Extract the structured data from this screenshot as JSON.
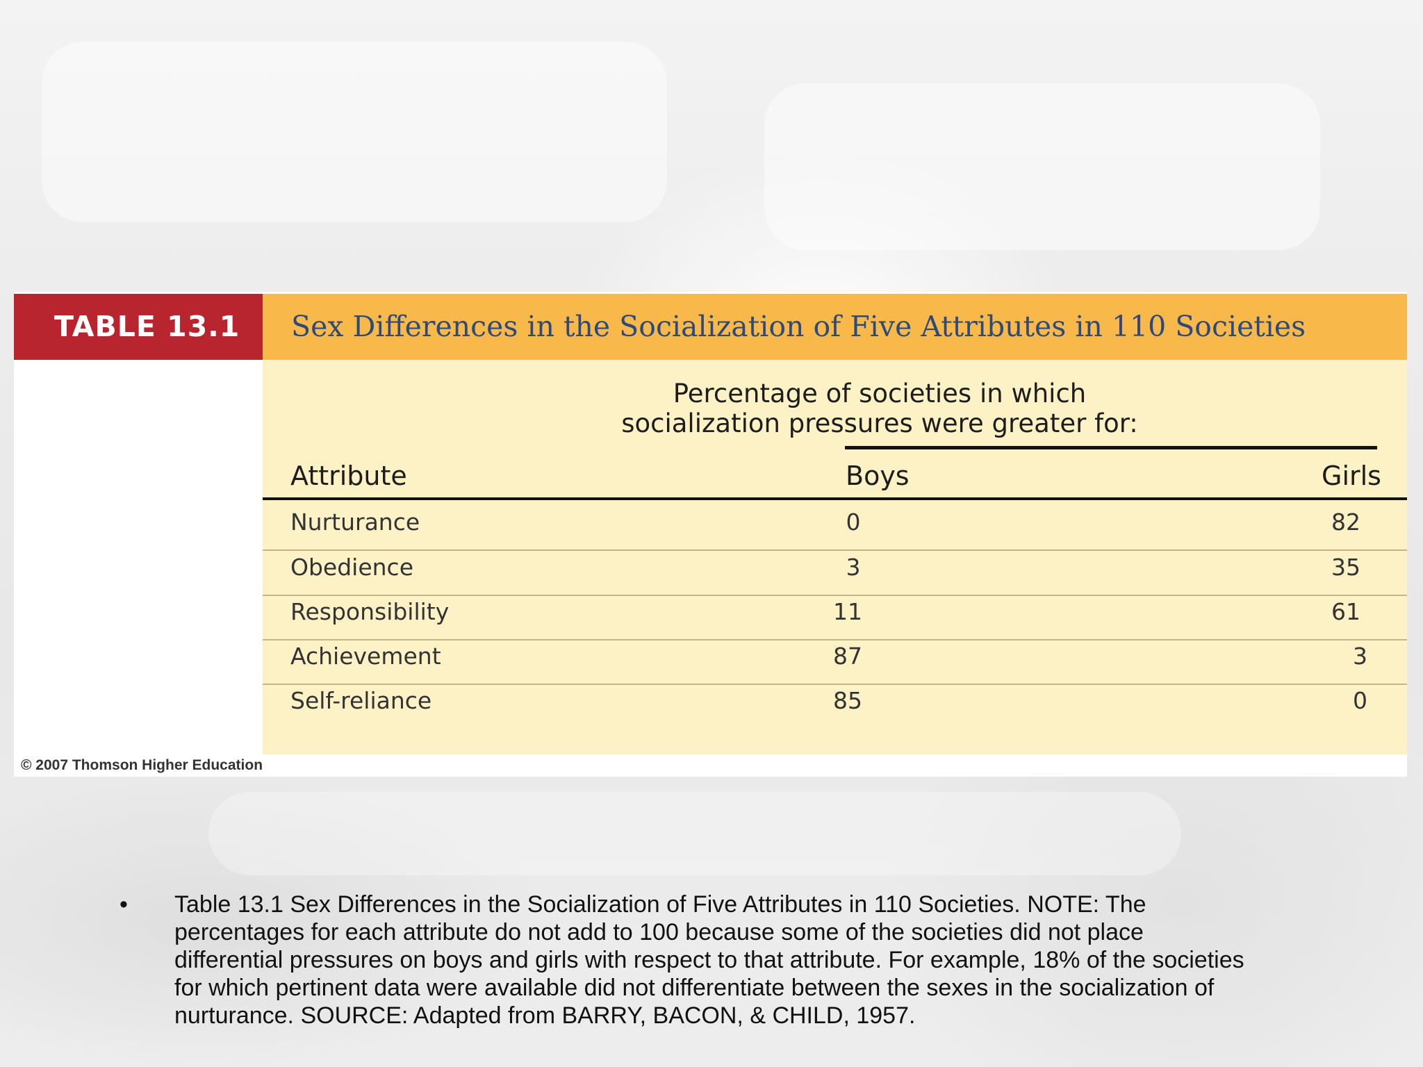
{
  "table": {
    "tag": "TABLE 13.1",
    "title": "Sex Differences in the Socialization of Five Attributes in 110 Societies",
    "group_label_line1": "Percentage of societies in which",
    "group_label_line2": "socialization pressures were greater for:",
    "columns": {
      "attribute": "Attribute",
      "boys": "Boys",
      "girls": "Girls"
    },
    "rows": [
      {
        "attribute": "Nurturance",
        "boys": "0",
        "girls": "82"
      },
      {
        "attribute": "Obedience",
        "boys": "3",
        "girls": "35"
      },
      {
        "attribute": "Responsibility",
        "boys": "11",
        "girls": "61"
      },
      {
        "attribute": "Achievement",
        "boys": "87",
        "girls": "3"
      },
      {
        "attribute": "Self-reliance",
        "boys": "85",
        "girls": "0"
      }
    ],
    "copyright": "© 2007 Thomson Higher Education"
  },
  "note": {
    "bullet": "•",
    "text": "Table 13.1 Sex Differences in the Socialization of Five Attributes in 110 Societies.  NOTE: The percentages for each attribute do not add to 100 because some of the societies did not place differential pressures on boys and girls with respect to that attribute. For example, 18% of the societies for which pertinent data were available did not differentiate between the sexes in the socialization of nurturance.  SOURCE: Adapted from BARRY, BACON, & CHILD, 1957."
  },
  "colors": {
    "tag_background": "#b9252f",
    "header_background": "#f8b94a",
    "body_background": "#fdf1c6",
    "title_text": "#2c4a7c"
  }
}
